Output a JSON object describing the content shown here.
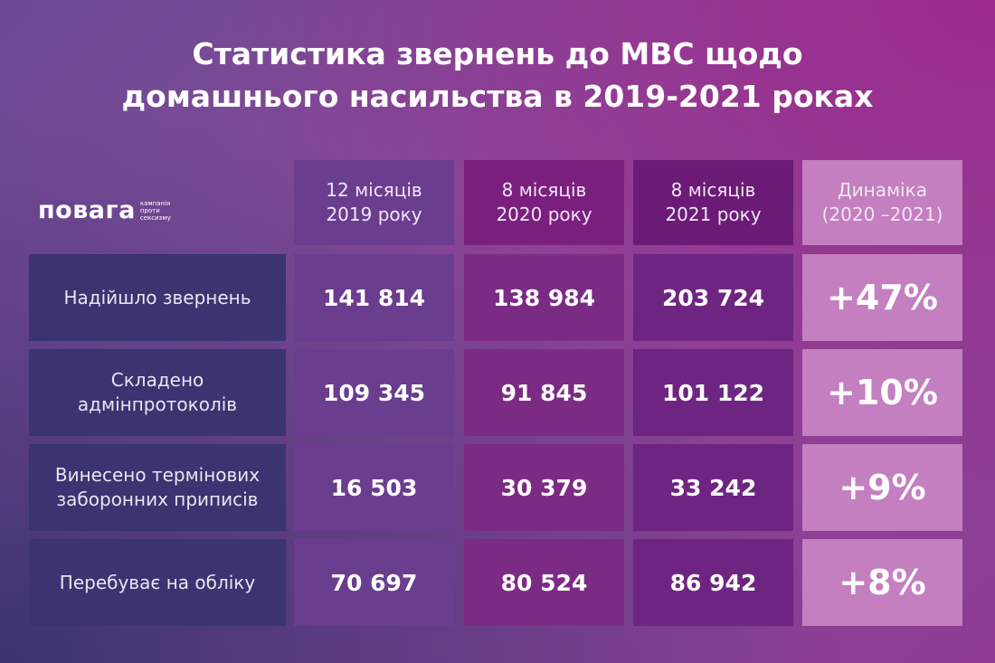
{
  "title": {
    "line1": "Статистика звернень до МВС щодо",
    "line2": "домашнього насильства в  2019-2021 роках"
  },
  "logo": {
    "word": "повага",
    "tagline": [
      "кампанія",
      "проти",
      "сексизму"
    ]
  },
  "colors": {
    "row_label_bg": "#3a3470",
    "col_2019_bg": "#6a3d8f",
    "col_2020_bg": "#7c2b85",
    "col_2021_bg": "#6e2582",
    "dynamics_bg": "#c47fc0",
    "header_2020_bg": "#7a1f7e",
    "header_2021_bg": "#6b1b76"
  },
  "chart_data": {
    "type": "table",
    "columns": [
      {
        "id": "2019",
        "label_lines": [
          "12 місяців",
          "2019 року"
        ]
      },
      {
        "id": "2020",
        "label_lines": [
          "8 місяців",
          "2020 року"
        ]
      },
      {
        "id": "2021",
        "label_lines": [
          "8 місяців",
          "2021 року"
        ]
      },
      {
        "id": "dynamics",
        "label_lines": [
          "Динаміка",
          "(2020 –2021)"
        ]
      }
    ],
    "rows": [
      {
        "label_lines": [
          "Надійшло звернень"
        ],
        "values": [
          141814,
          138984,
          203724
        ],
        "display": [
          "141 814",
          "138 984",
          "203 724"
        ],
        "dynamics": "+47%"
      },
      {
        "label_lines": [
          "Складено",
          "адмінпротоколів"
        ],
        "values": [
          109345,
          91845,
          101122
        ],
        "display": [
          "109 345",
          "91 845",
          "101 122"
        ],
        "dynamics": "+10%"
      },
      {
        "label_lines": [
          "Винесено термінових",
          "заборонних приписів"
        ],
        "values": [
          16503,
          30379,
          33242
        ],
        "display": [
          "16 503",
          "30 379",
          "33 242"
        ],
        "dynamics": "+9%"
      },
      {
        "label_lines": [
          "Перебуває на обліку"
        ],
        "values": [
          70697,
          80524,
          86942
        ],
        "display": [
          "70 697",
          "80 524",
          "86 942"
        ],
        "dynamics": "+8%"
      }
    ]
  }
}
